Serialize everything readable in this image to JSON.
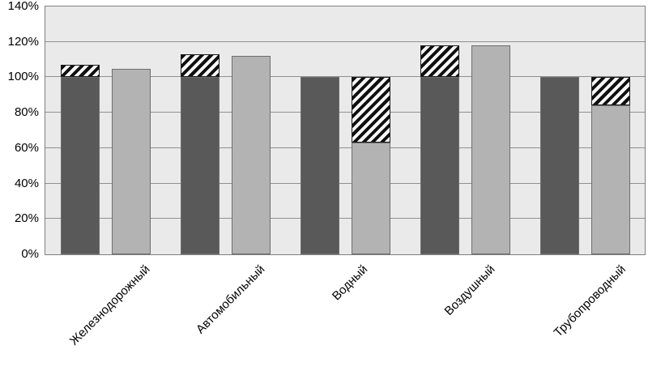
{
  "chart_data": {
    "type": "bar",
    "title": "",
    "xlabel": "",
    "ylabel": "",
    "categories": [
      "Железнодорожный",
      "Автомобильный",
      "Водный",
      "Воздушный",
      "Трубопроводный"
    ],
    "series": [
      {
        "name": "dark-series",
        "color": "#595959",
        "bars": [
          {
            "solid": 100,
            "total": 107
          },
          {
            "solid": 100,
            "total": 113
          },
          {
            "solid": 100,
            "total": 100
          },
          {
            "solid": 100,
            "total": 118
          },
          {
            "solid": 100,
            "total": 100
          }
        ]
      },
      {
        "name": "light-series",
        "color": "#b3b3b3",
        "bars": [
          {
            "solid": 105,
            "total": 105
          },
          {
            "solid": 112,
            "total": 112
          },
          {
            "solid": 63,
            "total": 100
          },
          {
            "solid": 118,
            "total": 118
          },
          {
            "solid": 84,
            "total": 100
          }
        ]
      }
    ],
    "hatch_note": "diagonal black-white hatch marks the segment between the solid value and the 100% level",
    "ytick_labels": [
      "0%",
      "20%",
      "40%",
      "60%",
      "80%",
      "100%",
      "120%",
      "140%"
    ],
    "ylim": [
      0,
      140
    ],
    "ytick_step": 20,
    "grid": true,
    "legend": "none",
    "colors": {
      "plot_background": "#eaeaea",
      "plot_border": "#7f7f7f",
      "gridline": "#909090",
      "dark_bar": "#595959",
      "light_bar": "#b3b3b3",
      "hatch_dark": "#101010",
      "hatch_light": "#f7f7f7",
      "text": "#000000"
    }
  }
}
